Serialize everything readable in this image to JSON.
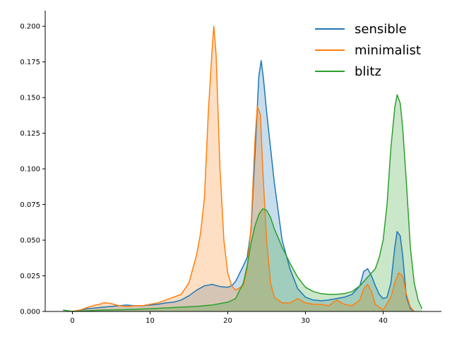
{
  "chart_data": {
    "type": "area",
    "title": "",
    "xlabel": "",
    "ylabel": "",
    "xlim": [
      -3.5,
      47.5
    ],
    "ylim": [
      0,
      0.211
    ],
    "grid": false,
    "legend_position": "top-right",
    "x_ticks": [
      0,
      10,
      20,
      30,
      40
    ],
    "x_tick_labels": [
      "0",
      "10",
      "20",
      "30",
      "40"
    ],
    "y_ticks": [
      0.0,
      0.025,
      0.05,
      0.075,
      0.1,
      0.125,
      0.15,
      0.175,
      0.2
    ],
    "y_tick_labels": [
      "0.000",
      "0.025",
      "0.050",
      "0.075",
      "0.100",
      "0.125",
      "0.150",
      "0.175",
      "0.200"
    ],
    "series": [
      {
        "name": "sensible",
        "color": "#1f77b4",
        "points": [
          [
            0,
            0.0
          ],
          [
            1,
            0.001
          ],
          [
            2,
            0.002
          ],
          [
            3,
            0.0025
          ],
          [
            4,
            0.003
          ],
          [
            5,
            0.0035
          ],
          [
            6,
            0.004
          ],
          [
            7,
            0.0045
          ],
          [
            8,
            0.004
          ],
          [
            9,
            0.004
          ],
          [
            10,
            0.0045
          ],
          [
            11,
            0.005
          ],
          [
            12,
            0.006
          ],
          [
            13,
            0.0065
          ],
          [
            14,
            0.008
          ],
          [
            15,
            0.011
          ],
          [
            16,
            0.015
          ],
          [
            17,
            0.018
          ],
          [
            18,
            0.019
          ],
          [
            19,
            0.0175
          ],
          [
            20,
            0.017
          ],
          [
            20.5,
            0.018
          ],
          [
            21,
            0.021
          ],
          [
            22,
            0.032
          ],
          [
            22.5,
            0.038
          ],
          [
            23,
            0.058
          ],
          [
            23.5,
            0.11
          ],
          [
            24,
            0.165
          ],
          [
            24.3,
            0.176
          ],
          [
            24.6,
            0.163
          ],
          [
            25,
            0.14
          ],
          [
            26,
            0.09
          ],
          [
            27,
            0.05
          ],
          [
            28,
            0.03
          ],
          [
            29,
            0.016
          ],
          [
            30,
            0.01
          ],
          [
            31,
            0.008
          ],
          [
            32,
            0.0075
          ],
          [
            33,
            0.008
          ],
          [
            34,
            0.009
          ],
          [
            35,
            0.01
          ],
          [
            36,
            0.012
          ],
          [
            37,
            0.018
          ],
          [
            37.5,
            0.028
          ],
          [
            38,
            0.03
          ],
          [
            38.5,
            0.025
          ],
          [
            39,
            0.018
          ],
          [
            39.5,
            0.012
          ],
          [
            40,
            0.009
          ],
          [
            40.5,
            0.01
          ],
          [
            41,
            0.02
          ],
          [
            41.5,
            0.045
          ],
          [
            41.8,
            0.056
          ],
          [
            42.2,
            0.053
          ],
          [
            42.5,
            0.04
          ],
          [
            43,
            0.01
          ],
          [
            43.5,
            0.002
          ],
          [
            44,
            0.0
          ]
        ]
      },
      {
        "name": "minimalist",
        "color": "#ff7f0e",
        "points": [
          [
            0,
            0.0
          ],
          [
            1,
            0.001
          ],
          [
            2,
            0.003
          ],
          [
            3,
            0.0045
          ],
          [
            3.5,
            0.005
          ],
          [
            4,
            0.006
          ],
          [
            4.5,
            0.006
          ],
          [
            5,
            0.0055
          ],
          [
            6,
            0.004
          ],
          [
            7,
            0.0035
          ],
          [
            8,
            0.004
          ],
          [
            9,
            0.004
          ],
          [
            10,
            0.005
          ],
          [
            11,
            0.006
          ],
          [
            12,
            0.008
          ],
          [
            13,
            0.01
          ],
          [
            14,
            0.012
          ],
          [
            15,
            0.02
          ],
          [
            16,
            0.04
          ],
          [
            16.5,
            0.055
          ],
          [
            17,
            0.08
          ],
          [
            17.5,
            0.14
          ],
          [
            18,
            0.185
          ],
          [
            18.2,
            0.2
          ],
          [
            18.5,
            0.18
          ],
          [
            19,
            0.1
          ],
          [
            19.5,
            0.05
          ],
          [
            20,
            0.027
          ],
          [
            20.5,
            0.018
          ],
          [
            21,
            0.015
          ],
          [
            22,
            0.018
          ],
          [
            22.5,
            0.03
          ],
          [
            23,
            0.06
          ],
          [
            23.5,
            0.12
          ],
          [
            23.8,
            0.144
          ],
          [
            24.2,
            0.138
          ],
          [
            24.5,
            0.1
          ],
          [
            25,
            0.05
          ],
          [
            25.5,
            0.02
          ],
          [
            26,
            0.01
          ],
          [
            27,
            0.006
          ],
          [
            28,
            0.006
          ],
          [
            29,
            0.009
          ],
          [
            30,
            0.006
          ],
          [
            31,
            0.005
          ],
          [
            32,
            0.005
          ],
          [
            33,
            0.004
          ],
          [
            34,
            0.008
          ],
          [
            35,
            0.005
          ],
          [
            36,
            0.004
          ],
          [
            37,
            0.008
          ],
          [
            37.5,
            0.016
          ],
          [
            38,
            0.019
          ],
          [
            38.5,
            0.014
          ],
          [
            39,
            0.005
          ],
          [
            40,
            0.001
          ],
          [
            41,
            0.01
          ],
          [
            41.5,
            0.02
          ],
          [
            42,
            0.027
          ],
          [
            42.5,
            0.025
          ],
          [
            43,
            0.012
          ],
          [
            43.5,
            0.003
          ],
          [
            44,
            0.0
          ]
        ]
      },
      {
        "name": "blitz",
        "color": "#2ca02c",
        "points": [
          [
            -1.2,
            0.001
          ],
          [
            0,
            0.0
          ],
          [
            2,
            0.0005
          ],
          [
            4,
            0.001
          ],
          [
            6,
            0.0012
          ],
          [
            8,
            0.0015
          ],
          [
            10,
            0.002
          ],
          [
            12,
            0.0025
          ],
          [
            14,
            0.003
          ],
          [
            16,
            0.0035
          ],
          [
            18,
            0.0045
          ],
          [
            20,
            0.0065
          ],
          [
            21,
            0.009
          ],
          [
            22,
            0.02
          ],
          [
            22.5,
            0.032
          ],
          [
            23,
            0.048
          ],
          [
            23.5,
            0.06
          ],
          [
            24,
            0.068
          ],
          [
            24.5,
            0.072
          ],
          [
            25,
            0.071
          ],
          [
            25.5,
            0.066
          ],
          [
            26,
            0.058
          ],
          [
            27,
            0.045
          ],
          [
            28,
            0.034
          ],
          [
            29,
            0.024
          ],
          [
            30,
            0.017
          ],
          [
            31,
            0.014
          ],
          [
            32,
            0.0125
          ],
          [
            33,
            0.012
          ],
          [
            34,
            0.012
          ],
          [
            35,
            0.0125
          ],
          [
            36,
            0.014
          ],
          [
            37,
            0.018
          ],
          [
            38,
            0.024
          ],
          [
            39,
            0.03
          ],
          [
            39.5,
            0.038
          ],
          [
            40,
            0.05
          ],
          [
            40.5,
            0.075
          ],
          [
            41,
            0.115
          ],
          [
            41.5,
            0.143
          ],
          [
            41.8,
            0.152
          ],
          [
            42.2,
            0.146
          ],
          [
            42.5,
            0.13
          ],
          [
            43,
            0.09
          ],
          [
            43.5,
            0.045
          ],
          [
            44,
            0.02
          ],
          [
            44.5,
            0.008
          ],
          [
            45,
            0.002
          ]
        ]
      }
    ]
  }
}
